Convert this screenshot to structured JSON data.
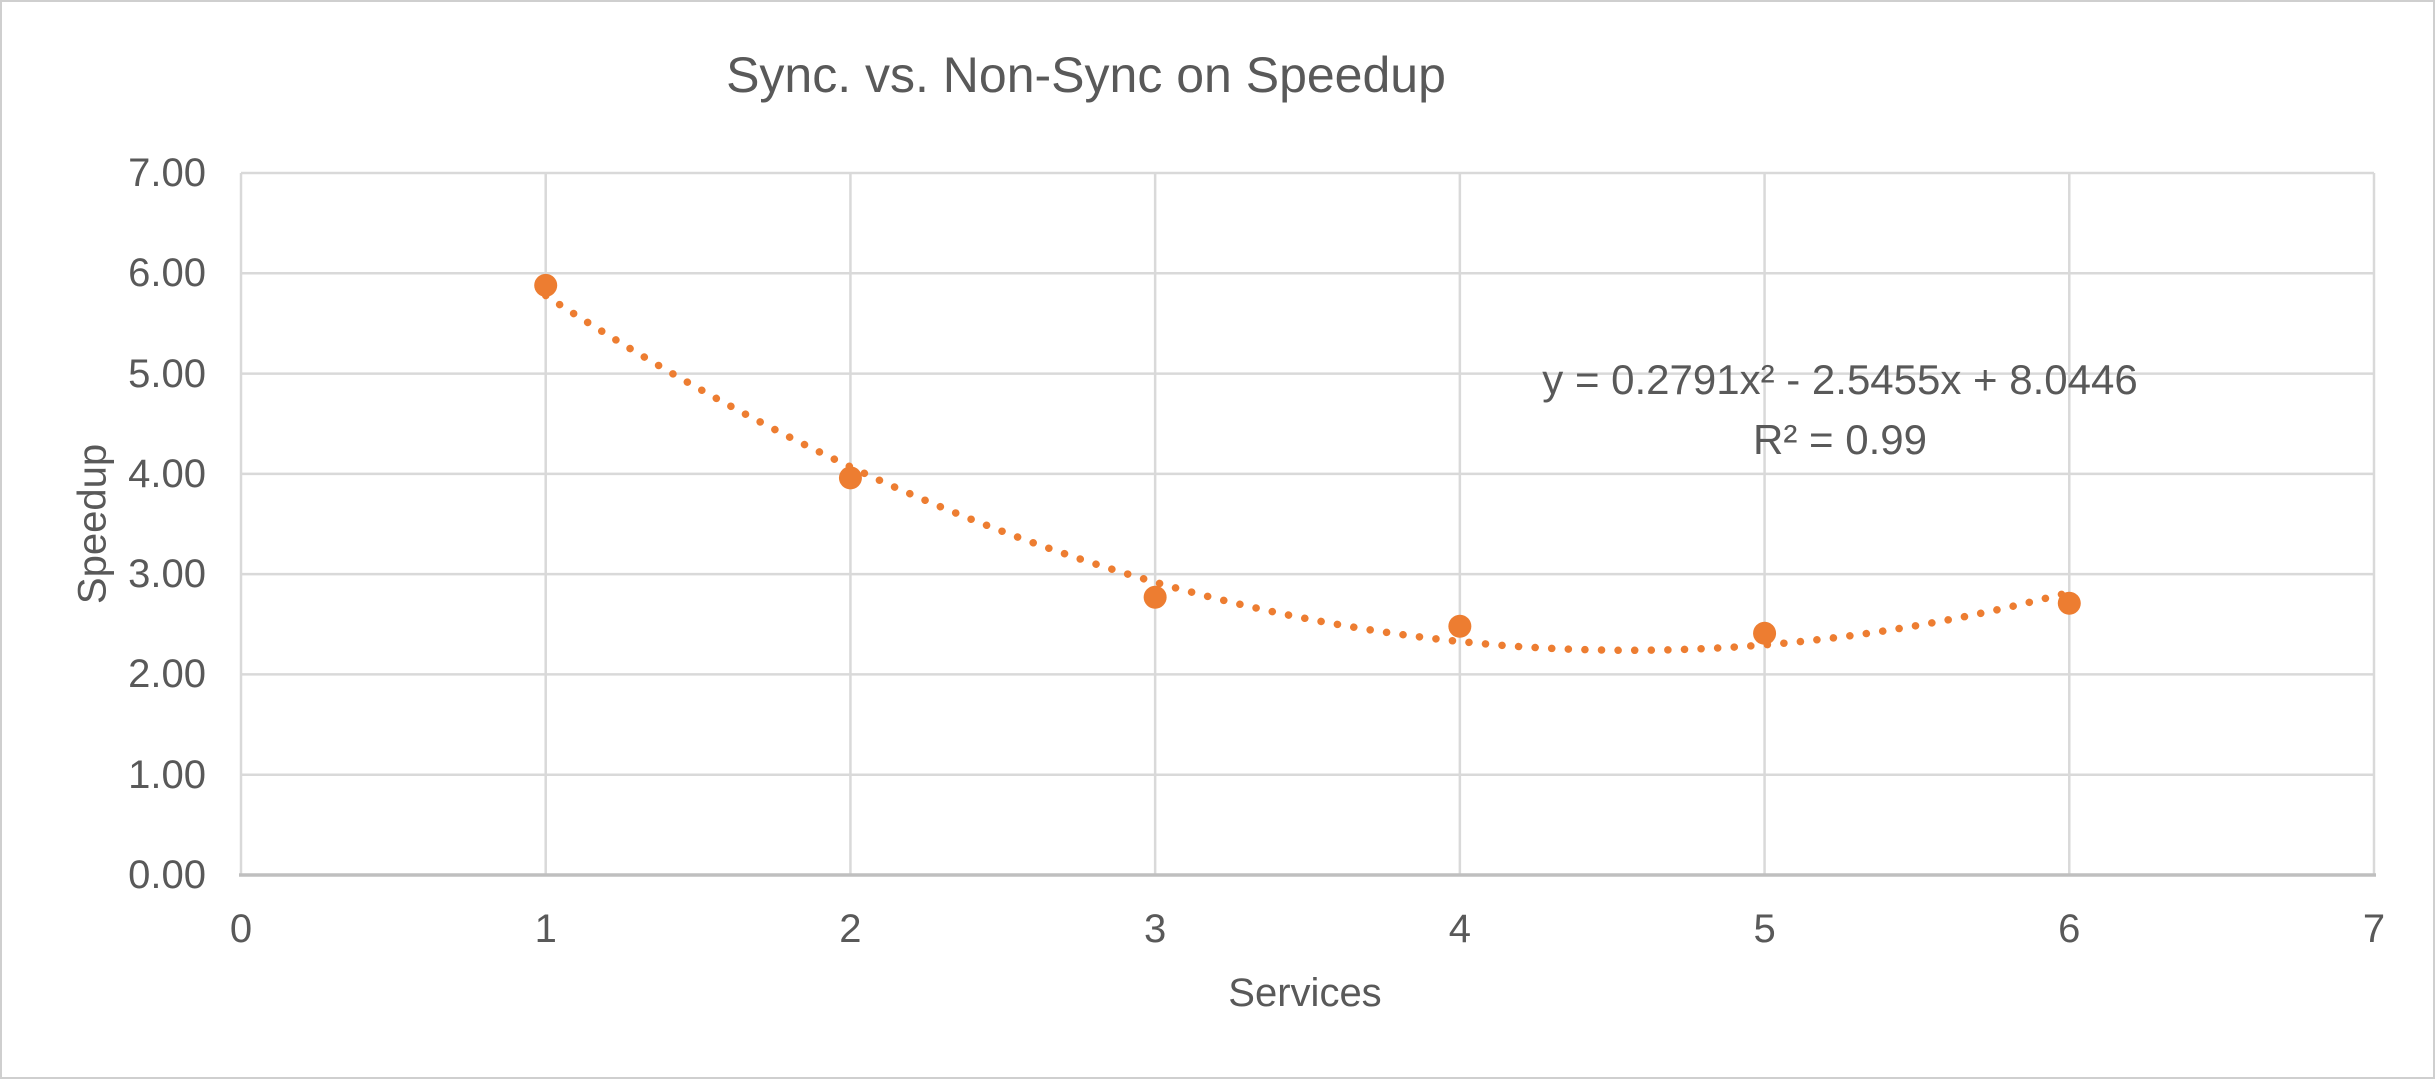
{
  "window": {
    "background_color": "#ffffff",
    "border_color": "#cfcfcf"
  },
  "chart_data": {
    "type": "scatter",
    "title": "Sync. vs. Non-Sync on Speedup",
    "xlabel": "Services",
    "ylabel": "Speedup",
    "xlim": [
      0,
      7
    ],
    "ylim": [
      0,
      7
    ],
    "grid": true,
    "legend_position": "none",
    "x_ticks": [
      {
        "v": 0,
        "label": "0"
      },
      {
        "v": 1,
        "label": "1"
      },
      {
        "v": 2,
        "label": "2"
      },
      {
        "v": 3,
        "label": "3"
      },
      {
        "v": 4,
        "label": "4"
      },
      {
        "v": 5,
        "label": "5"
      },
      {
        "v": 6,
        "label": "6"
      },
      {
        "v": 7,
        "label": "7"
      }
    ],
    "y_ticks": [
      {
        "v": 0,
        "label": "0.00"
      },
      {
        "v": 1,
        "label": "1.00"
      },
      {
        "v": 2,
        "label": "2.00"
      },
      {
        "v": 3,
        "label": "3.00"
      },
      {
        "v": 4,
        "label": "4.00"
      },
      {
        "v": 5,
        "label": "5.00"
      },
      {
        "v": 6,
        "label": "6.00"
      },
      {
        "v": 7,
        "label": "7.00"
      }
    ],
    "series": [
      {
        "name": "Speedup",
        "marker": "circle",
        "points": [
          {
            "x": 1,
            "y": 5.88
          },
          {
            "x": 2,
            "y": 3.96
          },
          {
            "x": 3,
            "y": 2.77
          },
          {
            "x": 4,
            "y": 2.48
          },
          {
            "x": 5,
            "y": 2.41
          },
          {
            "x": 6,
            "y": 2.71
          }
        ]
      }
    ],
    "trendline": {
      "kind": "polynomial",
      "order": 2,
      "a": 0.2791,
      "b": -2.5455,
      "c": 8.0446,
      "x_range": [
        1,
        6
      ],
      "style": "dotted",
      "equation_label": "y = 0.2791x² - 2.5455x + 8.0446",
      "r_squared_label": "R² = 0.99"
    },
    "colors": {
      "series": "#ED7D31",
      "gridline": "#D9D9D9",
      "axis_line": "#BFBFBF",
      "text": "#595959"
    }
  }
}
